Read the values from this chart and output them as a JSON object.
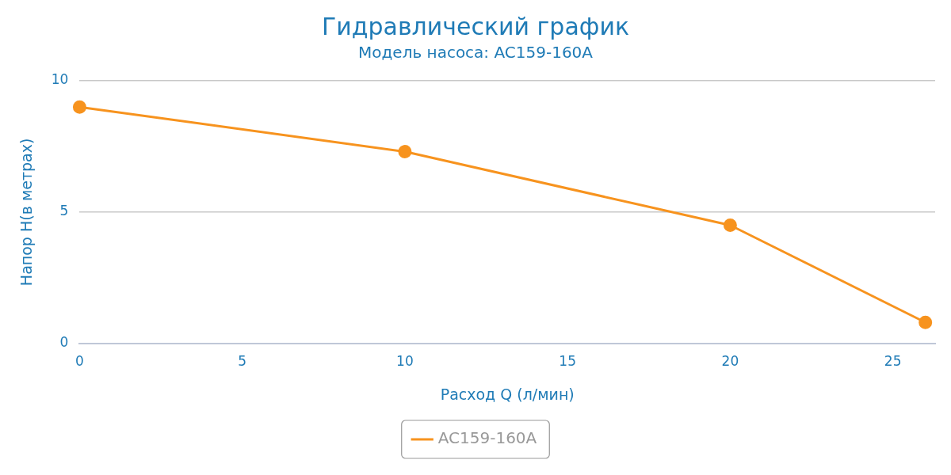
{
  "chart_data": {
    "type": "line",
    "title": "Гидравлический график",
    "subtitle": "Модель насоса: AC159-160A",
    "xlabel": "Расход Q (л/мин)",
    "ylabel": "Напор H(в метрах)",
    "x": [
      0,
      10,
      20,
      26
    ],
    "series": [
      {
        "name": "AC159-160A",
        "color": "#f7931e",
        "values": [
          9,
          7.3,
          4.5,
          0.8
        ]
      }
    ],
    "xlim": [
      0,
      26.3
    ],
    "xticks": [
      0,
      5,
      10,
      15,
      20,
      25
    ],
    "ylim": [
      0,
      10
    ],
    "yticks": [
      0,
      5,
      10
    ],
    "grid": "y",
    "legend": "bottom",
    "marker": "circle",
    "line_style": "solid"
  }
}
